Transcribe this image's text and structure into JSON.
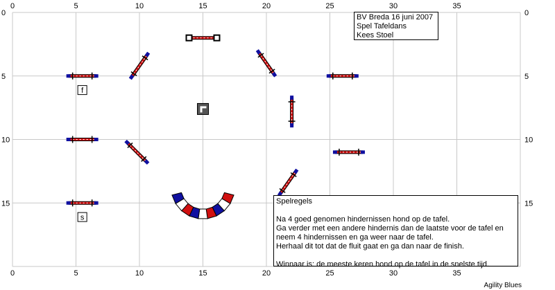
{
  "axes": {
    "x_ticks": [
      "0",
      "5",
      "10",
      "15",
      "20",
      "25",
      "30",
      "35"
    ],
    "y_ticks": [
      "0",
      "5",
      "10",
      "15"
    ],
    "x_range": [
      0,
      40
    ],
    "y_range": [
      0,
      20
    ],
    "grid": true
  },
  "info": {
    "line1": "BV Breda 16 juni 2007",
    "line2": "Spel Tafeldans",
    "line3": "Kees Stoel"
  },
  "rules": {
    "title": "Spelregels",
    "line1": "Na 4 goed genomen hindernissen hond op de tafel.",
    "line2": "Ga verder met een andere hindernis dan de laatste voor de tafel en",
    "line3": "neem 4 hindernissen en ga weer naar de tafel.",
    "line4": "Herhaal dit tot dat de fluit gaat en ga dan naar de finish.",
    "line5": "Winnaar is: de meeste keren hond op de tafel in de snelste tijd."
  },
  "footer": "Agility Blues",
  "markers": {
    "finish_label": "f",
    "start_label": "s"
  },
  "colors": {
    "bar_red": "#d01010",
    "wing_blue": "#1010a0",
    "table": "#555555",
    "grid": "#c8c8c8"
  },
  "obstacles": [
    {
      "type": "jump",
      "x": 15,
      "y": 2,
      "angle": 0,
      "style": "white-wings"
    },
    {
      "type": "jump",
      "x": 10,
      "y": 4.2,
      "angle": -55
    },
    {
      "type": "jump",
      "x": 20,
      "y": 4,
      "angle": 55
    },
    {
      "type": "jump",
      "x": 5.5,
      "y": 5,
      "angle": 0
    },
    {
      "type": "jump",
      "x": 26,
      "y": 5,
      "angle": 0
    },
    {
      "type": "jump",
      "x": 22,
      "y": 7.8,
      "angle": 90
    },
    {
      "type": "jump",
      "x": 5.5,
      "y": 10,
      "angle": 0
    },
    {
      "type": "jump",
      "x": 9.8,
      "y": 11,
      "angle": 45
    },
    {
      "type": "jump",
      "x": 26.5,
      "y": 11,
      "angle": 0
    },
    {
      "type": "jump",
      "x": 21.7,
      "y": 13.4,
      "angle": -55
    },
    {
      "type": "jump",
      "x": 5.5,
      "y": 15,
      "angle": 0
    },
    {
      "type": "tunnel",
      "x": 15,
      "y": 14.3
    },
    {
      "type": "table",
      "x": 15,
      "y": 7.6
    },
    {
      "type": "marker",
      "x": 5.5,
      "y": 6,
      "label": "finish_label"
    },
    {
      "type": "marker",
      "x": 5.5,
      "y": 16,
      "label": "start_label"
    }
  ]
}
